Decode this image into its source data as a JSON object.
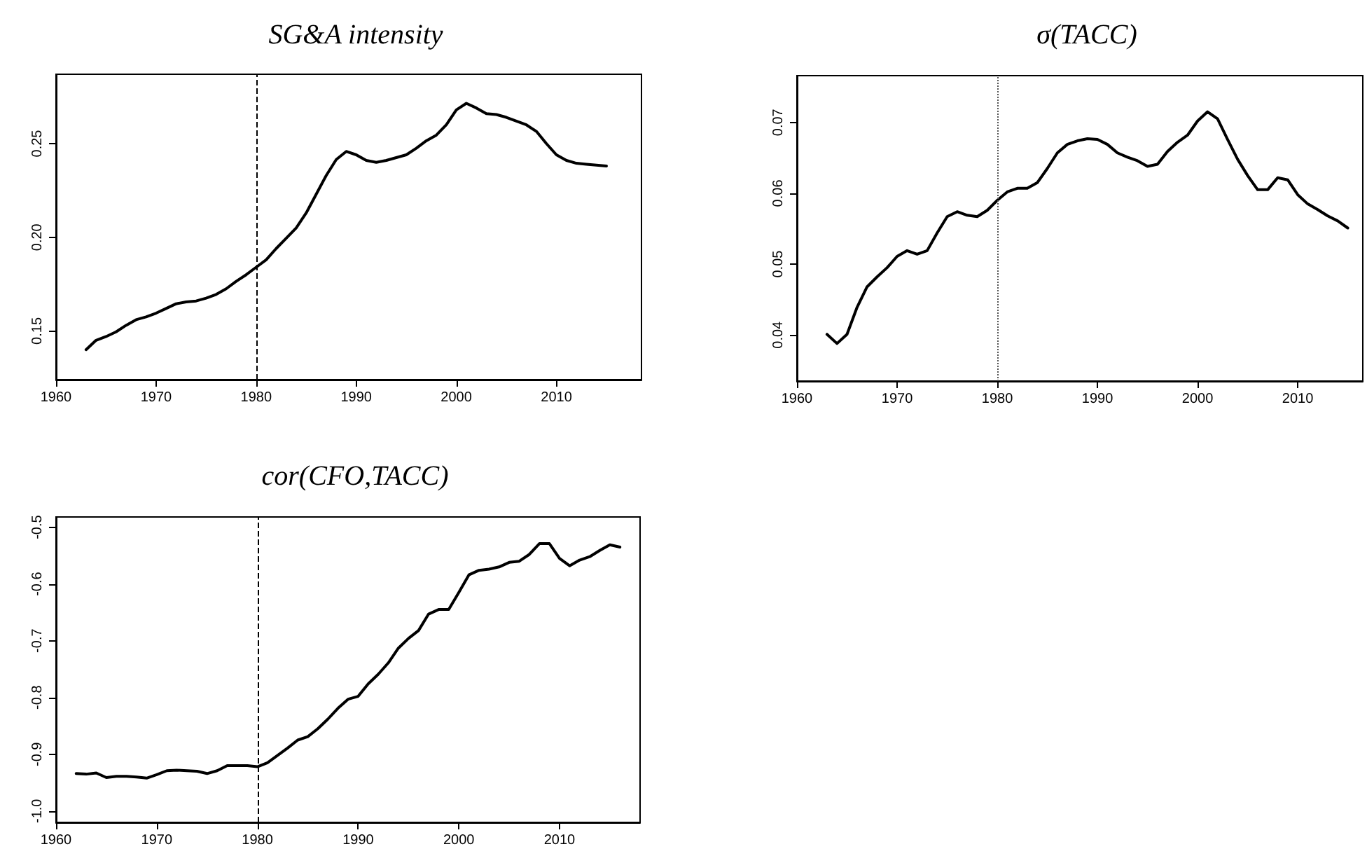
{
  "chart_data": [
    {
      "type": "line",
      "title": "SG&A intensity",
      "x": [
        1963,
        1964,
        1965,
        1966,
        1967,
        1968,
        1969,
        1970,
        1971,
        1972,
        1973,
        1974,
        1975,
        1976,
        1977,
        1978,
        1979,
        1980,
        1981,
        1982,
        1983,
        1984,
        1985,
        1986,
        1987,
        1988,
        1989,
        1990,
        1991,
        1992,
        1993,
        1994,
        1995,
        1996,
        1997,
        1998,
        1999,
        2000,
        2001,
        2002,
        2003,
        2004,
        2005,
        2006,
        2007,
        2008,
        2009,
        2010,
        2011,
        2012,
        2013,
        2014,
        2015
      ],
      "series": [
        {
          "color": "#000000",
          "values": [
            0.14,
            0.145,
            0.147,
            0.1495,
            0.153,
            0.156,
            0.1575,
            0.1595,
            0.162,
            0.1645,
            0.1655,
            0.166,
            0.1675,
            0.1695,
            0.1725,
            0.1765,
            0.18,
            0.184,
            0.188,
            0.194,
            0.1995,
            0.205,
            0.213,
            0.223,
            0.233,
            0.2415,
            0.2458,
            0.244,
            0.241,
            0.24,
            0.241,
            0.2425,
            0.244,
            0.2475,
            0.2515,
            0.2545,
            0.26,
            0.268,
            0.2715,
            0.269,
            0.266,
            0.2655,
            0.264,
            0.262,
            0.26,
            0.2565,
            0.25,
            0.244,
            0.241,
            0.2395,
            0.239,
            0.2385,
            0.238
          ]
        }
      ],
      "xlim": [
        1960,
        2018.5
      ],
      "xticks": [
        1960,
        1970,
        1980,
        1990,
        2000,
        2010
      ],
      "ylim": [
        0.124,
        0.287
      ],
      "yticks": [
        0.15,
        {
          "value": 0.2,
          "label": "0.20"
        },
        0.25
      ],
      "ref_lines": [
        {
          "axis": "x",
          "value": 1980,
          "color": "#000000",
          "line_style": "dashed"
        }
      ],
      "marker": "none",
      "line_style": "solid"
    },
    {
      "type": "line",
      "title": "σ(TACC)",
      "x": [
        1963,
        1964,
        1965,
        1966,
        1967,
        1968,
        1969,
        1970,
        1971,
        1972,
        1973,
        1974,
        1975,
        1976,
        1977,
        1978,
        1979,
        1980,
        1981,
        1982,
        1983,
        1984,
        1985,
        1986,
        1987,
        1988,
        1989,
        1990,
        1991,
        1992,
        1993,
        1994,
        1995,
        1996,
        1997,
        1998,
        1999,
        2000,
        2001,
        2002,
        2003,
        2004,
        2005,
        2006,
        2007,
        2008,
        2009,
        2010,
        2011,
        2012,
        2013,
        2014,
        2015
      ],
      "series": [
        {
          "color": "#000000",
          "values": [
            0.0401,
            0.0388,
            0.0401,
            0.0439,
            0.0468,
            0.0482,
            0.0495,
            0.0511,
            0.0519,
            0.0514,
            0.0519,
            0.0544,
            0.0567,
            0.0574,
            0.0569,
            0.0567,
            0.0576,
            0.059,
            0.0602,
            0.0607,
            0.0607,
            0.0615,
            0.0635,
            0.0657,
            0.0669,
            0.0674,
            0.0677,
            0.0676,
            0.0669,
            0.0657,
            0.0651,
            0.0646,
            0.0638,
            0.0641,
            0.0659,
            0.0672,
            0.0682,
            0.0702,
            0.0715,
            0.0705,
            0.0676,
            0.0648,
            0.0625,
            0.0605,
            0.0605,
            0.0622,
            0.0619,
            0.0598,
            0.0585,
            0.0577,
            0.0568,
            0.0561,
            0.0551
          ]
        }
      ],
      "xlim": [
        1960,
        2016.5
      ],
      "xticks": [
        1960,
        1970,
        1980,
        1990,
        2000,
        2010
      ],
      "ylim": [
        0.0335,
        0.0766
      ],
      "yticks": [
        0.04,
        0.05,
        0.06,
        0.07
      ],
      "ref_lines": [
        {
          "axis": "x",
          "value": 1980,
          "color": "#555555",
          "line_style": "dotted"
        }
      ],
      "marker": "none",
      "line_style": "solid"
    },
    {
      "type": "line",
      "title": "cor(CFO,TACC)",
      "x": [
        1962,
        1963,
        1964,
        1965,
        1966,
        1967,
        1968,
        1969,
        1970,
        1971,
        1972,
        1973,
        1974,
        1975,
        1976,
        1977,
        1978,
        1979,
        1980,
        1981,
        1982,
        1983,
        1984,
        1985,
        1986,
        1987,
        1988,
        1989,
        1990,
        1991,
        1992,
        1993,
        1994,
        1995,
        1996,
        1997,
        1998,
        1999,
        2000,
        2001,
        2002,
        2003,
        2004,
        2005,
        2006,
        2007,
        2008,
        2009,
        2010,
        2011,
        2012,
        2013,
        2014,
        2015,
        2016
      ],
      "series": [
        {
          "color": "#000000",
          "values": [
            -0.934,
            -0.935,
            -0.933,
            -0.941,
            -0.939,
            -0.939,
            -0.94,
            -0.942,
            -0.936,
            -0.929,
            -0.928,
            -0.929,
            -0.93,
            -0.934,
            -0.929,
            -0.92,
            -0.92,
            -0.92,
            -0.922,
            -0.915,
            -0.902,
            -0.889,
            -0.875,
            -0.869,
            -0.855,
            -0.838,
            -0.819,
            -0.803,
            -0.798,
            -0.776,
            -0.759,
            -0.739,
            -0.713,
            -0.696,
            -0.682,
            -0.653,
            -0.645,
            -0.645,
            -0.615,
            -0.584,
            -0.576,
            -0.574,
            -0.57,
            -0.562,
            -0.56,
            -0.548,
            -0.529,
            -0.529,
            -0.555,
            -0.568,
            -0.558,
            -0.552,
            -0.541,
            -0.531,
            -0.535
          ]
        }
      ],
      "xlim": [
        1960,
        2018
      ],
      "xticks": [
        1960,
        1970,
        1980,
        1990,
        2000,
        2010
      ],
      "ylim": [
        -1.02,
        -0.482
      ],
      "yticks": [
        {
          "value": -1,
          "label": "-1.0"
        },
        -0.9,
        -0.8,
        -0.7,
        -0.6,
        -0.5
      ],
      "ref_lines": [
        {
          "axis": "x",
          "value": 1980,
          "color": "#000000",
          "line_style": "dashed"
        }
      ],
      "marker": "none",
      "line_style": "solid"
    }
  ]
}
